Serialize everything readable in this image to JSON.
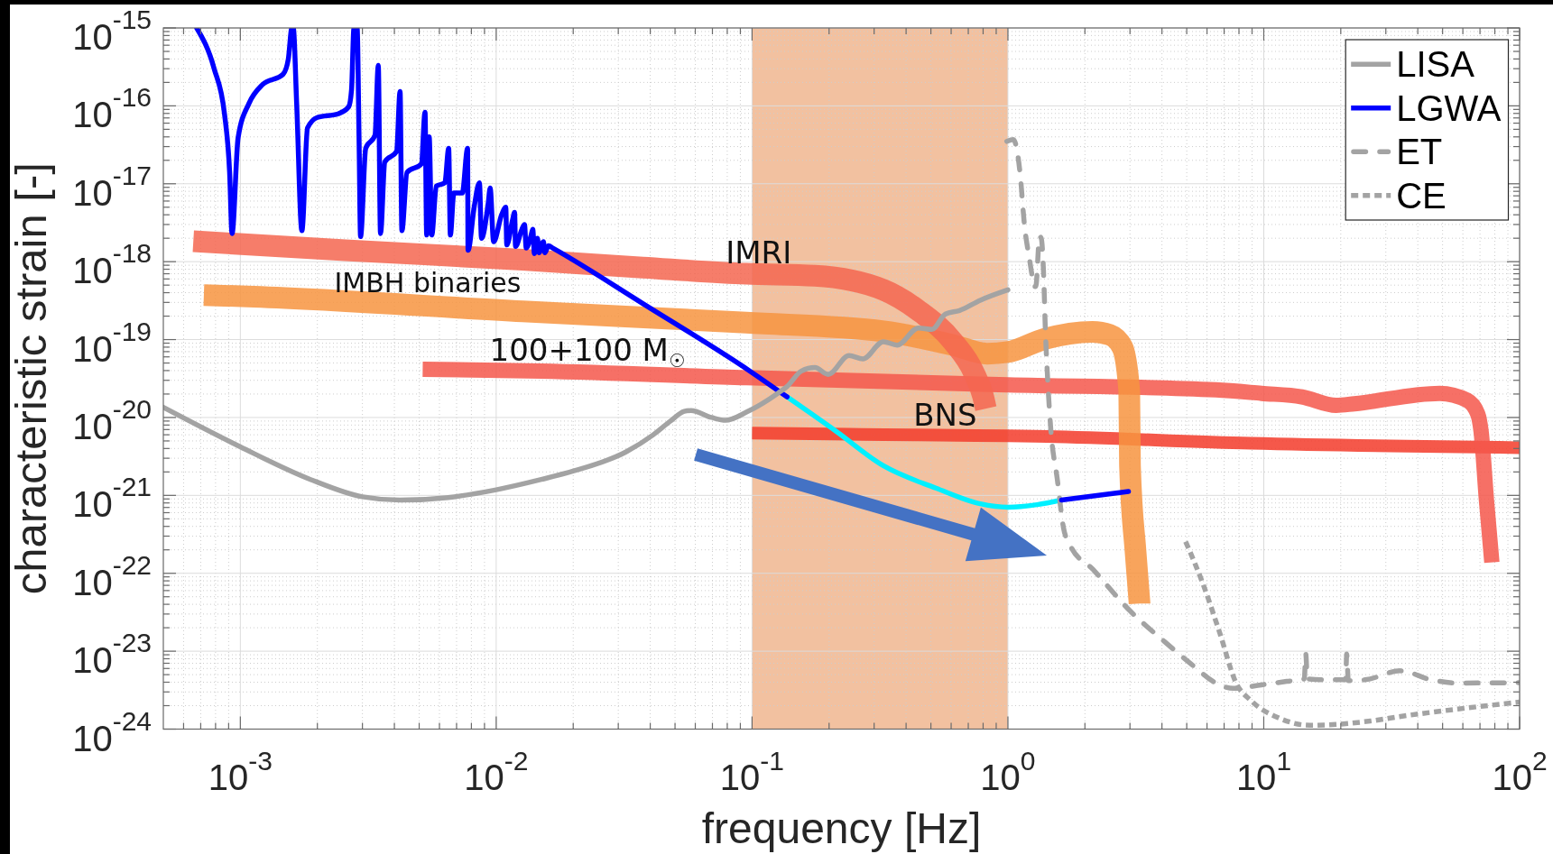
{
  "chart_data": {
    "type": "line",
    "xlabel": "frequency [Hz]",
    "ylabel": "characteristic strain [-]",
    "log": "xy",
    "xlim": [
      0.0005,
      100
    ],
    "ylim": [
      1e-24,
      1e-15
    ],
    "xticks": [
      {
        "value": 0.0006,
        "label": null
      },
      {
        "value": 0.0007,
        "label": null
      },
      {
        "value": 0.0008,
        "label": null
      },
      {
        "value": 0.0009,
        "label": null
      },
      {
        "value": 0.001,
        "label": "10$^{-3}$"
      },
      {
        "value": 0.002,
        "label": null
      },
      {
        "value": 0.003,
        "label": null
      },
      {
        "value": 0.004,
        "label": null
      },
      {
        "value": 0.005,
        "label": null
      },
      {
        "value": 0.006,
        "label": null
      },
      {
        "value": 0.007,
        "label": null
      },
      {
        "value": 0.008,
        "label": null
      },
      {
        "value": 0.009,
        "label": null
      },
      {
        "value": 0.01,
        "label": "10$^{-2}$"
      },
      {
        "value": 0.02,
        "label": null
      },
      {
        "value": 0.03,
        "label": null
      },
      {
        "value": 0.04,
        "label": null
      },
      {
        "value": 0.05,
        "label": null
      },
      {
        "value": 0.06,
        "label": null
      },
      {
        "value": 0.07,
        "label": null
      },
      {
        "value": 0.08,
        "label": null
      },
      {
        "value": 0.09,
        "label": null
      },
      {
        "value": 0.1,
        "label": "10$^{-1}$"
      },
      {
        "value": 0.2,
        "label": null
      },
      {
        "value": 0.3,
        "label": null
      },
      {
        "value": 0.4,
        "label": null
      },
      {
        "value": 0.5,
        "label": null
      },
      {
        "value": 0.6,
        "label": null
      },
      {
        "value": 0.7,
        "label": null
      },
      {
        "value": 0.8,
        "label": null
      },
      {
        "value": 0.9,
        "label": null
      },
      {
        "value": 1,
        "label": "10$^{0}$"
      },
      {
        "value": 2,
        "label": null
      },
      {
        "value": 3,
        "label": null
      },
      {
        "value": 4,
        "label": null
      },
      {
        "value": 5,
        "label": null
      },
      {
        "value": 6,
        "label": null
      },
      {
        "value": 7,
        "label": null
      },
      {
        "value": 8,
        "label": null
      },
      {
        "value": 9,
        "label": null
      },
      {
        "value": 10,
        "label": "10$^{1}$"
      },
      {
        "value": 20,
        "label": null
      },
      {
        "value": 30,
        "label": null
      },
      {
        "value": 40,
        "label": null
      },
      {
        "value": 50,
        "label": null
      },
      {
        "value": 60,
        "label": null
      },
      {
        "value": 70,
        "label": null
      },
      {
        "value": 80,
        "label": null
      },
      {
        "value": 90,
        "label": null
      },
      {
        "value": 100,
        "label": "10$^{2}$"
      }
    ],
    "yticks": [
      {
        "value": 1e-24,
        "label": "10$^{-24}$"
      },
      {
        "value": 2e-24,
        "label": null
      },
      {
        "value": 3e-24,
        "label": null
      },
      {
        "value": 4e-24,
        "label": null
      },
      {
        "value": 5e-24,
        "label": null
      },
      {
        "value": 6e-24,
        "label": null
      },
      {
        "value": 7e-24,
        "label": null
      },
      {
        "value": 8e-24,
        "label": null
      },
      {
        "value": 9e-24,
        "label": null
      },
      {
        "value": 1e-23,
        "label": "10$^{-23}$"
      },
      {
        "value": 2e-23,
        "label": null
      },
      {
        "value": 3e-23,
        "label": null
      },
      {
        "value": 4e-23,
        "label": null
      },
      {
        "value": 5e-23,
        "label": null
      },
      {
        "value": 6e-23,
        "label": null
      },
      {
        "value": 7e-23,
        "label": null
      },
      {
        "value": 8e-23,
        "label": null
      },
      {
        "value": 9e-23,
        "label": null
      },
      {
        "value": 1e-22,
        "label": "10$^{-22}$"
      },
      {
        "value": 2e-22,
        "label": null
      },
      {
        "value": 3e-22,
        "label": null
      },
      {
        "value": 4e-22,
        "label": null
      },
      {
        "value": 5e-22,
        "label": null
      },
      {
        "value": 6e-22,
        "label": null
      },
      {
        "value": 7e-22,
        "label": null
      },
      {
        "value": 8e-22,
        "label": null
      },
      {
        "value": 9e-22,
        "label": null
      },
      {
        "value": 1e-21,
        "label": "10$^{-21}$"
      },
      {
        "value": 2e-21,
        "label": null
      },
      {
        "value": 3e-21,
        "label": null
      },
      {
        "value": 4e-21,
        "label": null
      },
      {
        "value": 5e-21,
        "label": null
      },
      {
        "value": 6e-21,
        "label": null
      },
      {
        "value": 7e-21,
        "label": null
      },
      {
        "value": 8e-21,
        "label": null
      },
      {
        "value": 9e-21,
        "label": null
      },
      {
        "value": 1e-20,
        "label": "10$^{-20}$"
      },
      {
        "value": 2e-20,
        "label": null
      },
      {
        "value": 3e-20,
        "label": null
      },
      {
        "value": 4e-20,
        "label": null
      },
      {
        "value": 5e-20,
        "label": null
      },
      {
        "value": 6e-20,
        "label": null
      },
      {
        "value": 7e-20,
        "label": null
      },
      {
        "value": 8e-20,
        "label": null
      },
      {
        "value": 9e-20,
        "label": null
      },
      {
        "value": 1e-19,
        "label": "10$^{-19}$"
      },
      {
        "value": 2e-19,
        "label": null
      },
      {
        "value": 3e-19,
        "label": null
      },
      {
        "value": 4e-19,
        "label": null
      },
      {
        "value": 5e-19,
        "label": null
      },
      {
        "value": 6e-19,
        "label": null
      },
      {
        "value": 7e-19,
        "label": null
      },
      {
        "value": 8e-19,
        "label": null
      },
      {
        "value": 9e-19,
        "label": null
      },
      {
        "value": 1e-18,
        "label": "10$^{-18}$"
      },
      {
        "value": 2e-18,
        "label": null
      },
      {
        "value": 3e-18,
        "label": null
      },
      {
        "value": 4e-18,
        "label": null
      },
      {
        "value": 5e-18,
        "label": null
      },
      {
        "value": 6e-18,
        "label": null
      },
      {
        "value": 7e-18,
        "label": null
      },
      {
        "value": 8e-18,
        "label": null
      },
      {
        "value": 9e-18,
        "label": null
      },
      {
        "value": 1e-17,
        "label": "10$^{-17}$"
      },
      {
        "value": 2e-17,
        "label": null
      },
      {
        "value": 3e-17,
        "label": null
      },
      {
        "value": 4e-17,
        "label": null
      },
      {
        "value": 5e-17,
        "label": null
      },
      {
        "value": 6e-17,
        "label": null
      },
      {
        "value": 7e-17,
        "label": null
      },
      {
        "value": 8e-17,
        "label": null
      },
      {
        "value": 9e-17,
        "label": null
      },
      {
        "value": 1e-16,
        "label": "10$^{-16}$"
      },
      {
        "value": 2e-16,
        "label": null
      },
      {
        "value": 3e-16,
        "label": null
      },
      {
        "value": 4e-16,
        "label": null
      },
      {
        "value": 5e-16,
        "label": null
      },
      {
        "value": 6e-16,
        "label": null
      },
      {
        "value": 7e-16,
        "label": null
      },
      {
        "value": 8e-16,
        "label": null
      },
      {
        "value": 9e-16,
        "label": null
      },
      {
        "value": 1e-15,
        "label": "10$^{-15}$"
      }
    ],
    "grid": true,
    "legend": "top right",
    "bands": [
      {
        "axis": "x",
        "from": 0.1,
        "to": 1,
        "color": "#f2c1a0"
      }
    ],
    "series": [
      {
        "name": "LISA",
        "color": "#a3a3a3",
        "x": [
          0.0005,
          0.001,
          0.00188,
          0.003,
          0.0042,
          0.0065,
          0.01,
          0.015,
          0.0201,
          0.0321,
          0.0411,
          0.048,
          0.0543,
          0.0577,
          0.0695,
          0.0789,
          0.095,
          0.126,
          0.137,
          0.156,
          0.176,
          0.1985,
          0.2395,
          0.271,
          0.326,
          0.369,
          0.447,
          0.505,
          0.57,
          0.647,
          0.78,
          1.0
        ],
        "values": [
          1.35e-20,
          4.2e-21,
          1.6e-21,
          9.6e-22,
          8.7e-22,
          9.4e-22,
          1.18e-21,
          1.6e-21,
          2.06e-21,
          3.6e-21,
          6e-21,
          9e-21,
          1.2e-20,
          1.23e-20,
          1e-20,
          9.2e-21,
          1.17e-20,
          2.04e-20,
          2.5e-20,
          3.95e-20,
          4.37e-20,
          3.57e-20,
          6.25e-20,
          5.65e-20,
          9.4e-20,
          8.5e-20,
          1.41e-19,
          1.35e-19,
          2.13e-19,
          2.36e-19,
          3.2e-19,
          4.35e-19
        ]
      },
      {
        "name": "LGWA",
        "color": "#0000ff",
        "x": [
          0.000675,
          0.00079,
          0.000867,
          0.000908,
          0.000928,
          0.00098,
          0.00108,
          0.00122,
          0.00147,
          0.00154,
          0.00159,
          0.00161,
          0.00166,
          0.00174,
          0.00183,
          0.002,
          0.00241,
          0.00265,
          0.00272,
          0.00278,
          0.00286,
          0.00291,
          0.00295,
          0.00309,
          0.00336,
          0.00346,
          0.00353,
          0.00367,
          0.00408,
          0.00421,
          0.00428,
          0.00448,
          0.0051,
          0.00527,
          0.00535,
          0.00547,
          0.0056,
          0.00583,
          0.0063,
          0.00652,
          0.00662,
          0.00683,
          0.00737,
          0.00773,
          0.00776,
          0.0082,
          0.0086,
          0.00876,
          0.0093,
          0.00947,
          0.00977,
          0.0105,
          0.0109,
          0.011,
          0.0116,
          0.0118,
          0.0119,
          0.0126,
          0.0129,
          0.0131,
          0.0137,
          0.0139,
          0.0141,
          0.0145,
          0.0147,
          0.0153,
          0.0155,
          0.016,
          0.0167,
          0.0374,
          0.098,
          0.137,
          0.5,
          1.62,
          2.96
        ],
        "values": [
          1e-15,
          3e-16,
          7.9e-17,
          1.4e-17,
          2.3e-18,
          3.9e-17,
          1.07e-16,
          1.87e-16,
          2.55e-16,
          4e-16,
          1e-15,
          1e-15,
          1.07e-16,
          2.5e-18,
          5.2e-17,
          7.1e-17,
          7.9e-17,
          9.7e-17,
          1.6e-16,
          1e-15,
          1e-15,
          3.9e-17,
          2.1e-18,
          2.85e-17,
          4.2e-17,
          3.3e-16,
          2.3e-18,
          1.9e-17,
          2.6e-17,
          1.53e-16,
          2.5e-18,
          1.4e-17,
          1.8e-17,
          8.3e-17,
          2.2e-18,
          4e-17,
          2.2e-18,
          9.3e-18,
          1.03e-17,
          2.85e-17,
          2.2e-18,
          7.6e-18,
          7.6e-18,
          2.85e-17,
          1.4e-18,
          5e-18,
          1.03e-17,
          2e-18,
          5.5e-18,
          8.8e-18,
          1.8e-18,
          4e-18,
          5e-18,
          1.64e-18,
          3.5e-18,
          4.3e-18,
          1.57e-18,
          2.6e-18,
          3e-18,
          1.5e-18,
          2.2e-18,
          2.6e-18,
          1.27e-18,
          2e-18,
          1.3e-18,
          1.8e-18,
          1.3e-18,
          1.6e-18,
          1.48e-18,
          2.9e-19,
          3.95e-20,
          1.84e-20,
          null,
          8.7e-22,
          1.12e-21
        ]
      },
      {
        "name": "ET",
        "color": "#a3a3a3",
        "line_style": "dashed",
        "x": [
          0.99,
          1.05,
          1.115,
          1.16,
          1.22,
          1.25,
          1.265,
          1.285,
          1.33,
          1.35,
          1.38,
          1.4,
          1.43,
          1.47,
          1.56,
          1.65,
          1.75,
          2.15,
          3.0,
          4.1,
          5.3,
          6.5,
          7.6,
          9.8,
          12.3,
          14.4,
          14.6,
          14.8,
          17.6,
          20.9,
          21.1,
          21.4,
          24.9,
          34.2,
          45.1,
          57.4,
          100
        ],
        "values": [
          3.5e-17,
          3.7e-17,
          1.39e-17,
          3e-18,
          9.8e-19,
          5.9e-19,
          4.8e-19,
          4.8e-19,
          2.1e-18,
          2e-18,
          6.5e-19,
          1.41e-19,
          3.1e-20,
          7.3e-21,
          1.6e-21,
          3.8e-22,
          2.3e-22,
          1.12e-22,
          3.3e-23,
          1.32e-23,
          6.5e-24,
          3.9e-24,
          3.33e-24,
          3.7e-24,
          4.1e-24,
          4.4e-24,
          9.2e-24,
          4.4e-24,
          4.3e-24,
          4.3e-24,
          9.2e-24,
          4.2e-24,
          4.3e-24,
          5.6e-24,
          4.3e-24,
          3.9e-24,
          3.95e-24
        ]
      },
      {
        "name": "CE",
        "color": "#a3a3a3",
        "line_style": "dotted",
        "x": [
          4.95,
          5.77,
          6.7,
          7.8,
          8.9,
          11.4,
          15.1,
          19.2,
          26.1,
          35.6,
          57.4,
          100
        ],
        "values": [
          2.55e-22,
          7.5e-23,
          1.8e-23,
          3.9e-24,
          2.33e-24,
          1.4e-24,
          1.12e-24,
          1.15e-24,
          1.27e-24,
          1.48e-24,
          1.81e-24,
          2.22e-24
        ]
      },
      {
        "color": "#00f0ff",
        "x": [
          0.137,
          0.213,
          0.326,
          0.523,
          0.78,
          1.0,
          1.3,
          1.62
        ],
        "values": [
          1.84e-20,
          6.65e-21,
          2.4e-21,
          1.24e-21,
          7.8e-22,
          7.05e-22,
          7.6e-22,
          8.7e-22
        ]
      },
      {
        "color": "#f46650",
        "x": [
          0.000655,
          0.00257,
          0.0127,
          0.0374,
          0.095,
          0.176,
          0.326,
          0.447,
          0.61,
          0.735,
          0.8,
          0.82
        ],
        "values": [
          1.83e-18,
          1.4e-18,
          1.06e-18,
          8.4e-19,
          7e-19,
          6.6e-19,
          4.35e-19,
          2.36e-19,
          9.4e-20,
          3.8e-20,
          1.86e-20,
          1.3e-20
        ]
      },
      {
        "color": "#f7943f",
        "x": [
          0.00072,
          0.00113,
          0.0127,
          0.095,
          0.326,
          0.61,
          0.83,
          1.0,
          1.39,
          2.14,
          2.5,
          2.8,
          2.98,
          3.0,
          3.15,
          3.27
        ],
        "values": [
          3.73e-19,
          3.55e-19,
          2.3e-19,
          1.65e-19,
          1.28e-19,
          8.5e-20,
          6.6e-20,
          6.9e-20,
          1.02e-19,
          1.26e-19,
          1.15e-19,
          8e-20,
          2.2e-20,
          2.4e-21,
          2e-22,
          4.1e-23
        ]
      },
      {
        "color": "#f4574b",
        "x": [
          0.00516,
          0.015,
          0.095,
          1.0,
          6.5,
          9.8,
          14.1,
          19.2,
          22.6,
          48.7,
          62.4,
          68.6,
          70.7,
          74.2,
          77.9
        ],
        "values": [
          4.16e-20,
          3.95e-20,
          3.24e-20,
          2.63e-20,
          2.26e-20,
          2.04e-20,
          1.84e-20,
          1.43e-20,
          1.5e-20,
          2.04e-20,
          1.66e-20,
          1.11e-20,
          6.65e-21,
          8.7e-22,
          1.38e-22
        ]
      },
      {
        "color": "#f33b2a",
        "x": [
          0.1,
          0.24,
          1.42,
          8.9,
          100
        ],
        "values": [
          6.3e-21,
          6.1e-21,
          5.7e-21,
          4.66e-21,
          4.1e-21
        ]
      }
    ],
    "annotations": [
      {
        "text": "IMRI",
        "x": 0.0789,
        "y": 7.3e-19
      },
      {
        "text": "IMBH binaries",
        "x": 0.00233,
        "y": 3.1e-19
      },
      {
        "text": "100+100 M$_{☉}$",
        "x": 0.00942,
        "y": 4.05e-20
      },
      {
        "text": "BNS",
        "x": 0.427,
        "y": 6e-21
      }
    ]
  }
}
